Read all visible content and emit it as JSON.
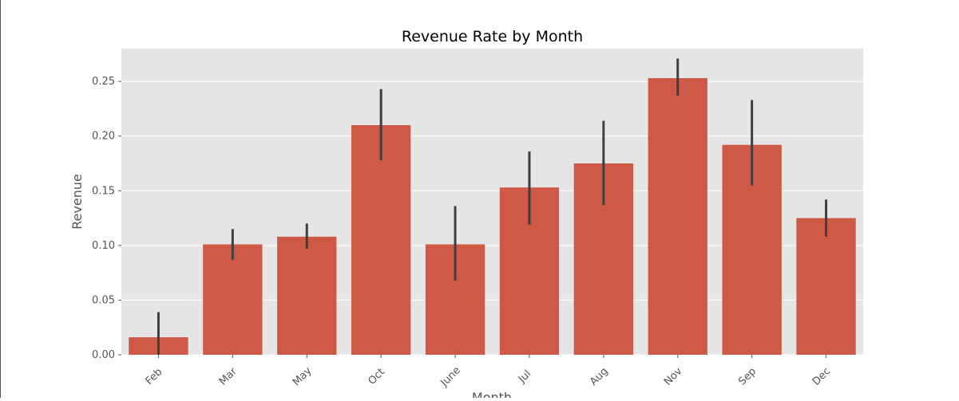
{
  "chart_data": {
    "type": "bar",
    "title": "Revenue Rate by Month",
    "xlabel": "Month",
    "ylabel": "Revenue",
    "categories": [
      "Feb",
      "Mar",
      "May",
      "Oct",
      "June",
      "Jul",
      "Aug",
      "Nov",
      "Sep",
      "Dec"
    ],
    "values": [
      0.016,
      0.101,
      0.108,
      0.21,
      0.101,
      0.153,
      0.175,
      0.253,
      0.192,
      0.125
    ],
    "error_low": [
      0.0,
      0.087,
      0.097,
      0.178,
      0.068,
      0.119,
      0.137,
      0.237,
      0.155,
      0.108
    ],
    "error_high": [
      0.039,
      0.115,
      0.12,
      0.243,
      0.136,
      0.186,
      0.214,
      0.271,
      0.233,
      0.142
    ],
    "ylim": [
      0,
      0.28
    ],
    "yticks": [
      0.0,
      0.05,
      0.1,
      0.15,
      0.2,
      0.25
    ],
    "ytick_labels": [
      "0.00",
      "0.05",
      "0.10",
      "0.15",
      "0.20",
      "0.25"
    ],
    "grid": true,
    "colors": {
      "bar": "#cd5946",
      "error_bar": "#3f3f3f",
      "plot_background": "#e5e5e5",
      "grid": "#ffffff",
      "text": "#555555",
      "title": "#000000"
    }
  }
}
